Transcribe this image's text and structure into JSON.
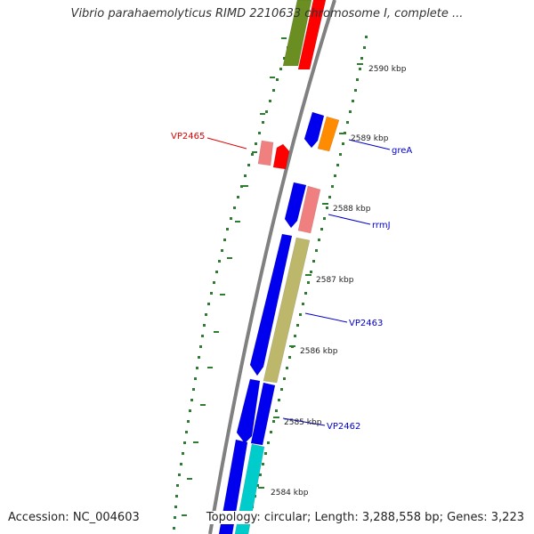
{
  "title": "Vibrio parahaemolyticus RIMD 2210633 chromosome I, complete ...",
  "footer": {
    "accession": "Accession: NC_004603",
    "topology": "Topology: circular; Length: 3,288,558 bp; Genes: 3,223"
  },
  "colors": {
    "backbone": "#808080",
    "tick_outer": "#2e7d32",
    "tick_inner": "#2e7d32",
    "label_red": "#dd0000",
    "label_blue": "#0000cc"
  },
  "ticks": [
    {
      "label": "2590 kbp"
    },
    {
      "label": "2589 kbp"
    },
    {
      "label": "2588 kbp"
    },
    {
      "label": "2587 kbp"
    },
    {
      "label": "2586 kbp"
    },
    {
      "label": "2585 kbp"
    },
    {
      "label": "2584 kbp"
    }
  ],
  "gene_labels": [
    {
      "name": "VP2465",
      "strand": "minus",
      "color": "#dd0000"
    },
    {
      "name": "greA",
      "strand": "plus",
      "color": "#0000cc"
    },
    {
      "name": "rrmJ",
      "strand": "plus",
      "color": "#0000cc"
    },
    {
      "name": "VP2463",
      "strand": "plus",
      "color": "#0000cc"
    },
    {
      "name": "VP2462",
      "strand": "plus",
      "color": "#0000cc"
    }
  ],
  "genes": [
    {
      "track": "plus",
      "color": "#6b8e23"
    },
    {
      "track": "plus",
      "color": "#ff0000"
    },
    {
      "track": "plus",
      "color": "#0000ee"
    },
    {
      "track": "plus",
      "color": "#ff8c00"
    },
    {
      "track": "minus",
      "color": "#f08080"
    },
    {
      "track": "minus",
      "color": "#ff0000"
    },
    {
      "track": "plus",
      "color": "#0000ee"
    },
    {
      "track": "plus",
      "color": "#f08080"
    },
    {
      "track": "plus",
      "color": "#0000ee"
    },
    {
      "track": "plus",
      "color": "#bdb76b"
    },
    {
      "track": "plus",
      "color": "#0000ee"
    },
    {
      "track": "plus",
      "color": "#0000ee"
    },
    {
      "track": "plus",
      "color": "#0000ee"
    },
    {
      "track": "plus",
      "color": "#00cccc"
    }
  ]
}
